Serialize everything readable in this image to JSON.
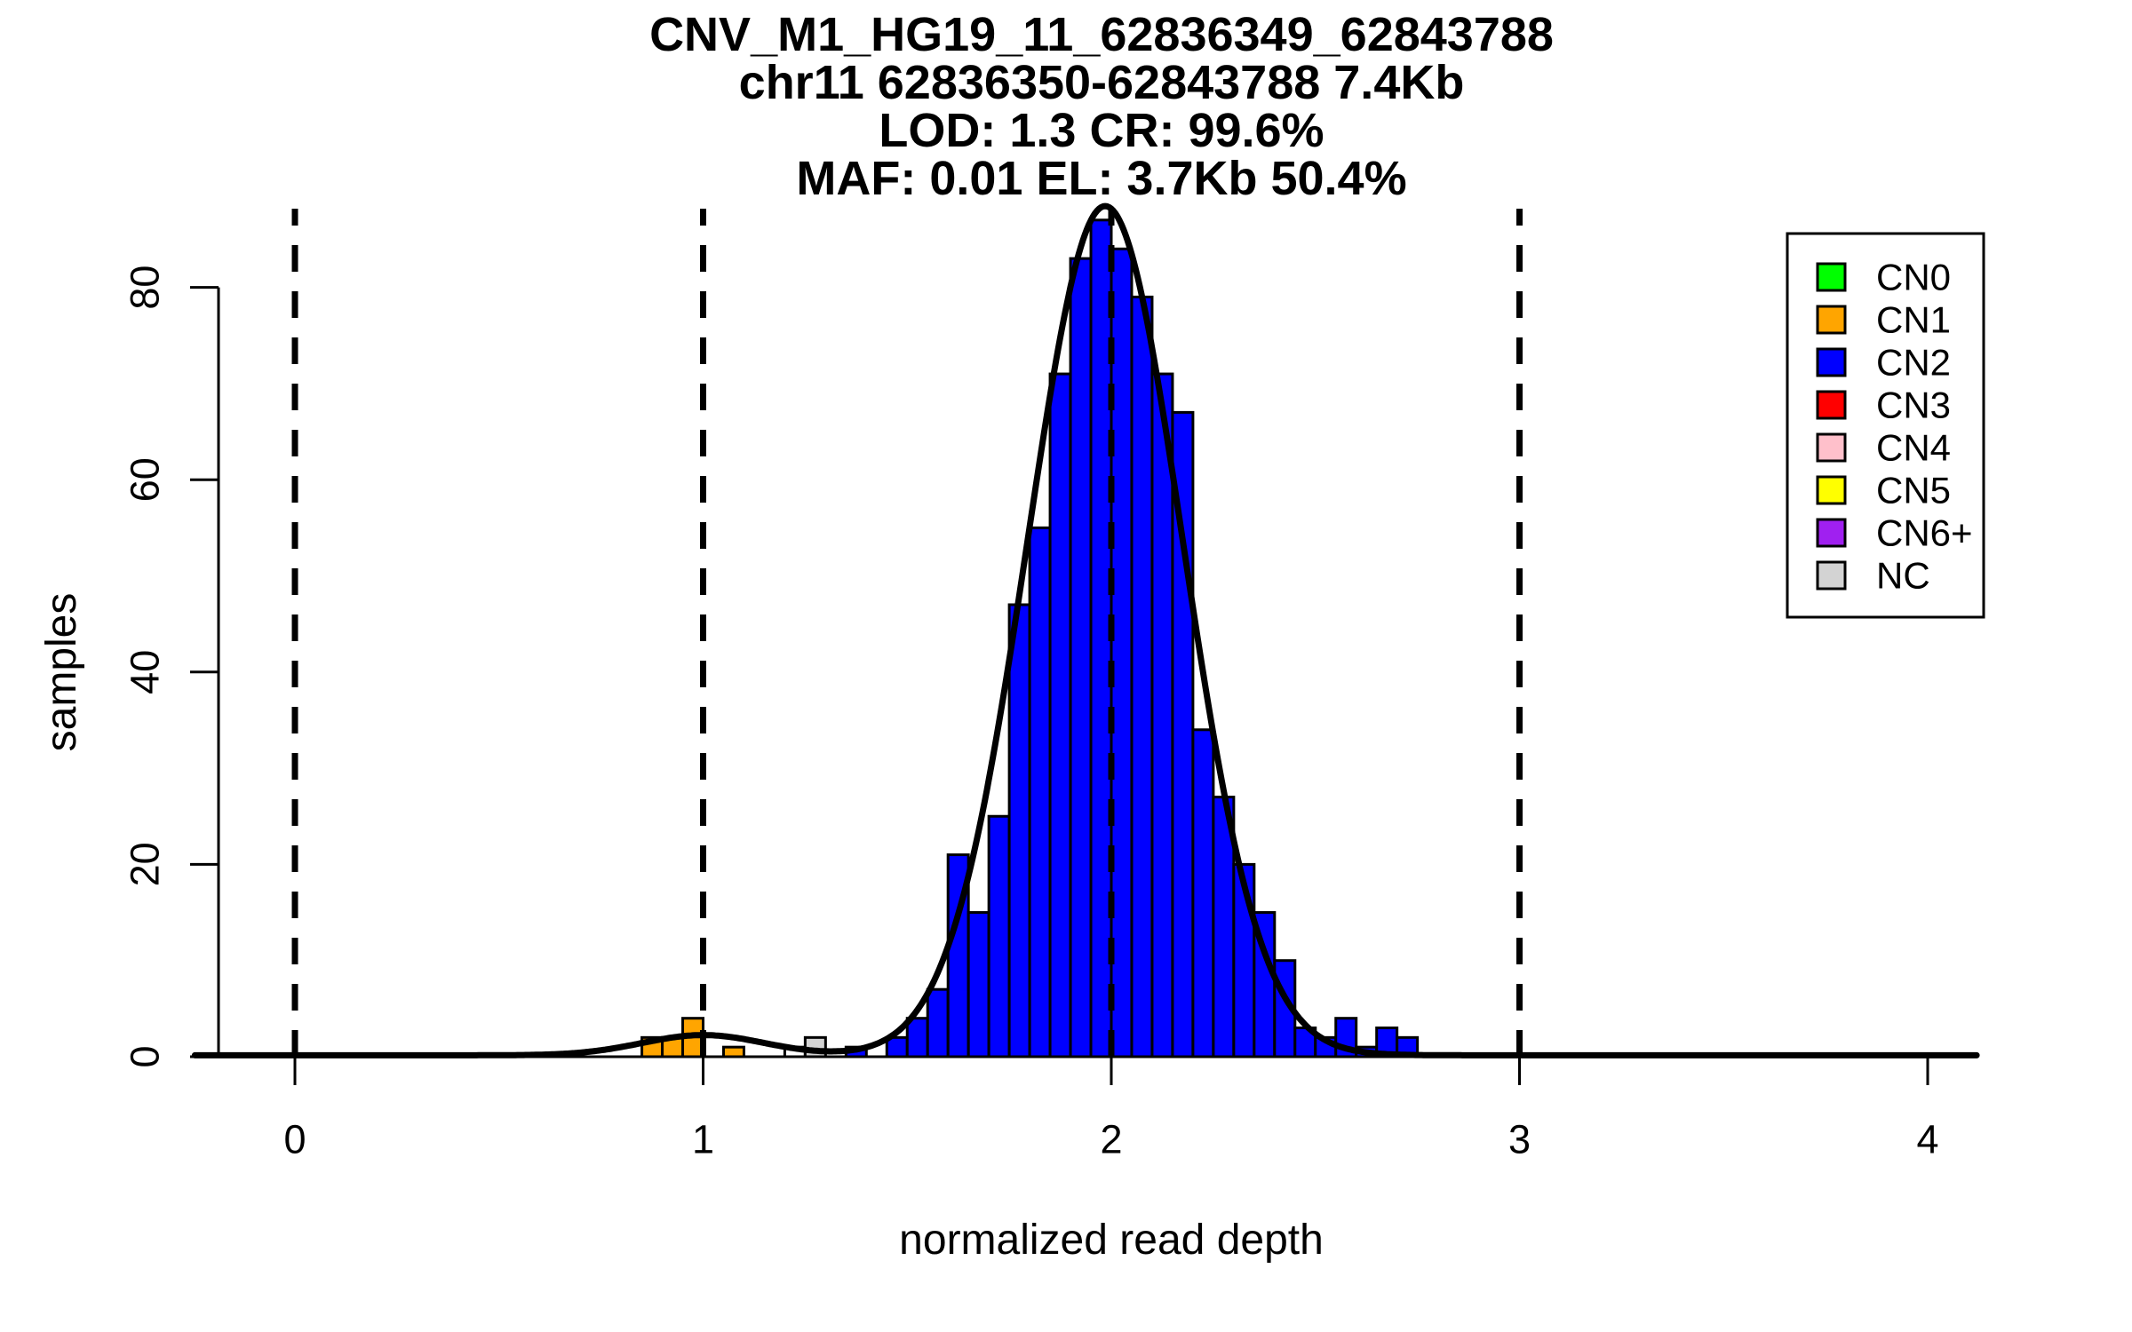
{
  "chart_data": {
    "type": "bar",
    "subtype": "histogram-with-density",
    "title_lines": [
      "CNV_M1_HG19_11_62836349_62843788",
      "chr11 62836350-62843788 7.4Kb",
      "LOD: 1.3 CR: 99.6%",
      "MAF: 0.01 EL: 3.7Kb 50.4%"
    ],
    "xlabel": "normalized read depth",
    "ylabel": "samples",
    "x_ticks": [
      0,
      1,
      2,
      3,
      4
    ],
    "y_ticks": [
      0,
      20,
      40,
      60,
      80
    ],
    "xlim": [
      -0.245,
      4.12
    ],
    "ylim": [
      0,
      88.6
    ],
    "grid": false,
    "bin_width": 0.05,
    "dashed_guides_x": [
      0,
      1,
      2,
      3
    ],
    "bars": [
      {
        "x": 0.85,
        "count": 2,
        "cn": "CN1"
      },
      {
        "x": 0.9,
        "count": 2,
        "cn": "CN1"
      },
      {
        "x": 0.95,
        "count": 4,
        "cn": "CN1"
      },
      {
        "x": 1.05,
        "count": 1,
        "cn": "CN1"
      },
      {
        "x": 1.2,
        "count": 1,
        "cn": "uncalled-white"
      },
      {
        "x": 1.25,
        "count": 2,
        "cn": "NC"
      },
      {
        "x": 1.35,
        "count": 1,
        "cn": "CN2"
      },
      {
        "x": 1.45,
        "count": 2,
        "cn": "CN2"
      },
      {
        "x": 1.5,
        "count": 4,
        "cn": "CN2"
      },
      {
        "x": 1.55,
        "count": 7,
        "cn": "CN2"
      },
      {
        "x": 1.6,
        "count": 21,
        "cn": "CN2"
      },
      {
        "x": 1.65,
        "count": 15,
        "cn": "CN2"
      },
      {
        "x": 1.7,
        "count": 25,
        "cn": "CN2"
      },
      {
        "x": 1.75,
        "count": 47,
        "cn": "CN2"
      },
      {
        "x": 1.8,
        "count": 55,
        "cn": "CN2"
      },
      {
        "x": 1.85,
        "count": 71,
        "cn": "CN2"
      },
      {
        "x": 1.9,
        "count": 83,
        "cn": "CN2"
      },
      {
        "x": 1.95,
        "count": 87,
        "cn": "CN2"
      },
      {
        "x": 2.0,
        "count": 84,
        "cn": "CN2"
      },
      {
        "x": 2.05,
        "count": 79,
        "cn": "CN2"
      },
      {
        "x": 2.1,
        "count": 71,
        "cn": "CN2"
      },
      {
        "x": 2.15,
        "count": 67,
        "cn": "CN2"
      },
      {
        "x": 2.2,
        "count": 34,
        "cn": "CN2"
      },
      {
        "x": 2.25,
        "count": 27,
        "cn": "CN2"
      },
      {
        "x": 2.3,
        "count": 20,
        "cn": "CN2"
      },
      {
        "x": 2.35,
        "count": 15,
        "cn": "CN2"
      },
      {
        "x": 2.4,
        "count": 10,
        "cn": "CN2"
      },
      {
        "x": 2.45,
        "count": 3,
        "cn": "CN2"
      },
      {
        "x": 2.5,
        "count": 2,
        "cn": "CN2"
      },
      {
        "x": 2.55,
        "count": 4,
        "cn": "CN2"
      },
      {
        "x": 2.6,
        "count": 1,
        "cn": "CN2"
      },
      {
        "x": 2.65,
        "count": 3,
        "cn": "CN2"
      },
      {
        "x": 2.7,
        "count": 2,
        "cn": "CN2"
      }
    ],
    "density_curve": {
      "baseline": 0.15,
      "x_range": [
        -0.245,
        4.12
      ],
      "components": [
        {
          "mean": 1.0,
          "sd": 0.15,
          "amplitude": 2.1
        },
        {
          "mean": 1.985,
          "sd": 0.19,
          "amplitude": 88.3
        }
      ]
    },
    "legend": {
      "position": "top-right",
      "items": [
        {
          "label": "CN0",
          "color": "#00FF00"
        },
        {
          "label": "CN1",
          "color": "#FFA500"
        },
        {
          "label": "CN2",
          "color": "#0000FF"
        },
        {
          "label": "CN3",
          "color": "#FF0000"
        },
        {
          "label": "CN4",
          "color": "#FFC0CB"
        },
        {
          "label": "CN5",
          "color": "#FFFF00"
        },
        {
          "label": "CN6+",
          "color": "#A020F0"
        },
        {
          "label": "NC",
          "color": "#D3D3D3"
        }
      ]
    }
  },
  "palette": {
    "CN0": "#00FF00",
    "CN1": "#FFA500",
    "CN2": "#0000FF",
    "CN3": "#FF0000",
    "CN4": "#FFC0CB",
    "CN5": "#FFFF00",
    "CN6+": "#A020F0",
    "NC": "#D3D3D3",
    "uncalled-white": "#FFFFFF"
  },
  "colors": {
    "background": "#FFFFFF",
    "axis": "#000000",
    "bar_border": "#000000",
    "curve": "#000000",
    "dashed_guide": "#000000"
  }
}
